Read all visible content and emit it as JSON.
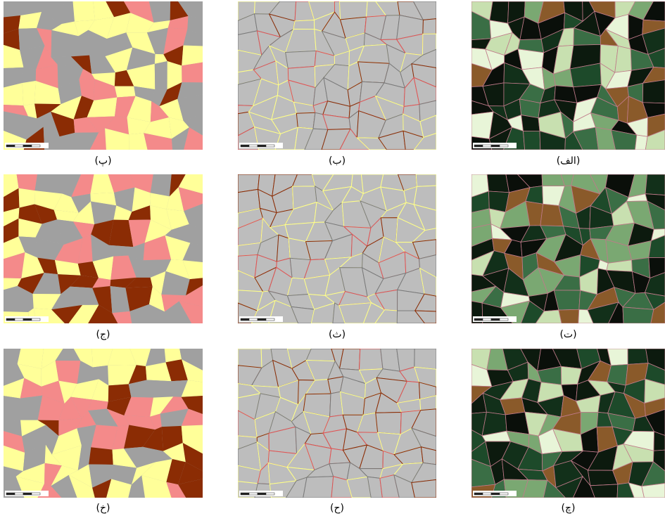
{
  "panels": [
    {
      "label": "(الف)"
    },
    {
      "label": "(ب)"
    },
    {
      "label": "(پ)"
    },
    {
      "label": "(ت)"
    },
    {
      "label": "(ث)"
    },
    {
      "label": "(ج)"
    },
    {
      "label": "(چ)"
    },
    {
      "label": "(ح)"
    },
    {
      "label": "(خ)"
    }
  ]
}
